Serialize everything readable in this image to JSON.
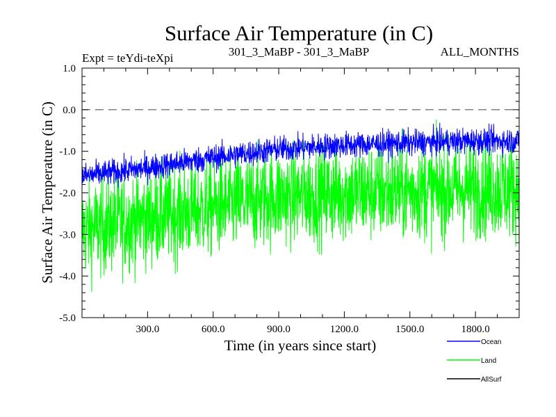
{
  "chart_data": {
    "type": "line",
    "title": "Surface Air Temperature (in C)",
    "subtitle_left": "Expt = teYdi-teXpi",
    "subtitle_center": "301_3_MaBP - 301_3_MaBP",
    "subtitle_right": "ALL_MONTHS",
    "xlabel": "Time (in years since start)",
    "ylabel": "Surface Air Temperature (in C)",
    "xlim": [
      0,
      2000
    ],
    "ylim": [
      -5.0,
      1.0
    ],
    "xticks": [
      300,
      600,
      900,
      1200,
      1500,
      1800
    ],
    "xtick_labels": [
      "300.0",
      "600.0",
      "900.0",
      "1200.0",
      "1500.0",
      "1800.0"
    ],
    "yticks": [
      1.0,
      0.0,
      -1.0,
      -2.0,
      -3.0,
      -4.0,
      -5.0
    ],
    "ytick_labels": [
      "1.0",
      "0.0",
      "-1.0",
      "-2.0",
      "-3.0",
      "-4.0",
      "-5.0"
    ],
    "reference_line": {
      "y": 0.0,
      "style": "dashed"
    },
    "series": [
      {
        "name": "Land",
        "color": "#00ff00",
        "trend_x": [
          0,
          300,
          600,
          900,
          1200,
          1500,
          1800,
          2000
        ],
        "trend_y": [
          -2.9,
          -2.6,
          -2.35,
          -2.1,
          -2.0,
          -1.95,
          -1.9,
          -1.9
        ],
        "spread": 1.05
      },
      {
        "name": "Ocean",
        "color": "#0000ff",
        "trend_x": [
          0,
          300,
          600,
          900,
          1200,
          1500,
          1800,
          2000
        ],
        "trend_y": [
          -1.6,
          -1.4,
          -1.15,
          -0.95,
          -0.85,
          -0.8,
          -0.75,
          -0.75
        ],
        "spread": 0.28
      },
      {
        "name": "AllSurf",
        "color": "#000000",
        "trend_x": [],
        "trend_y": [],
        "spread": 0
      }
    ],
    "legend": [
      "Ocean",
      "Land",
      "AllSurf"
    ],
    "legend_position": "bottom-right"
  }
}
